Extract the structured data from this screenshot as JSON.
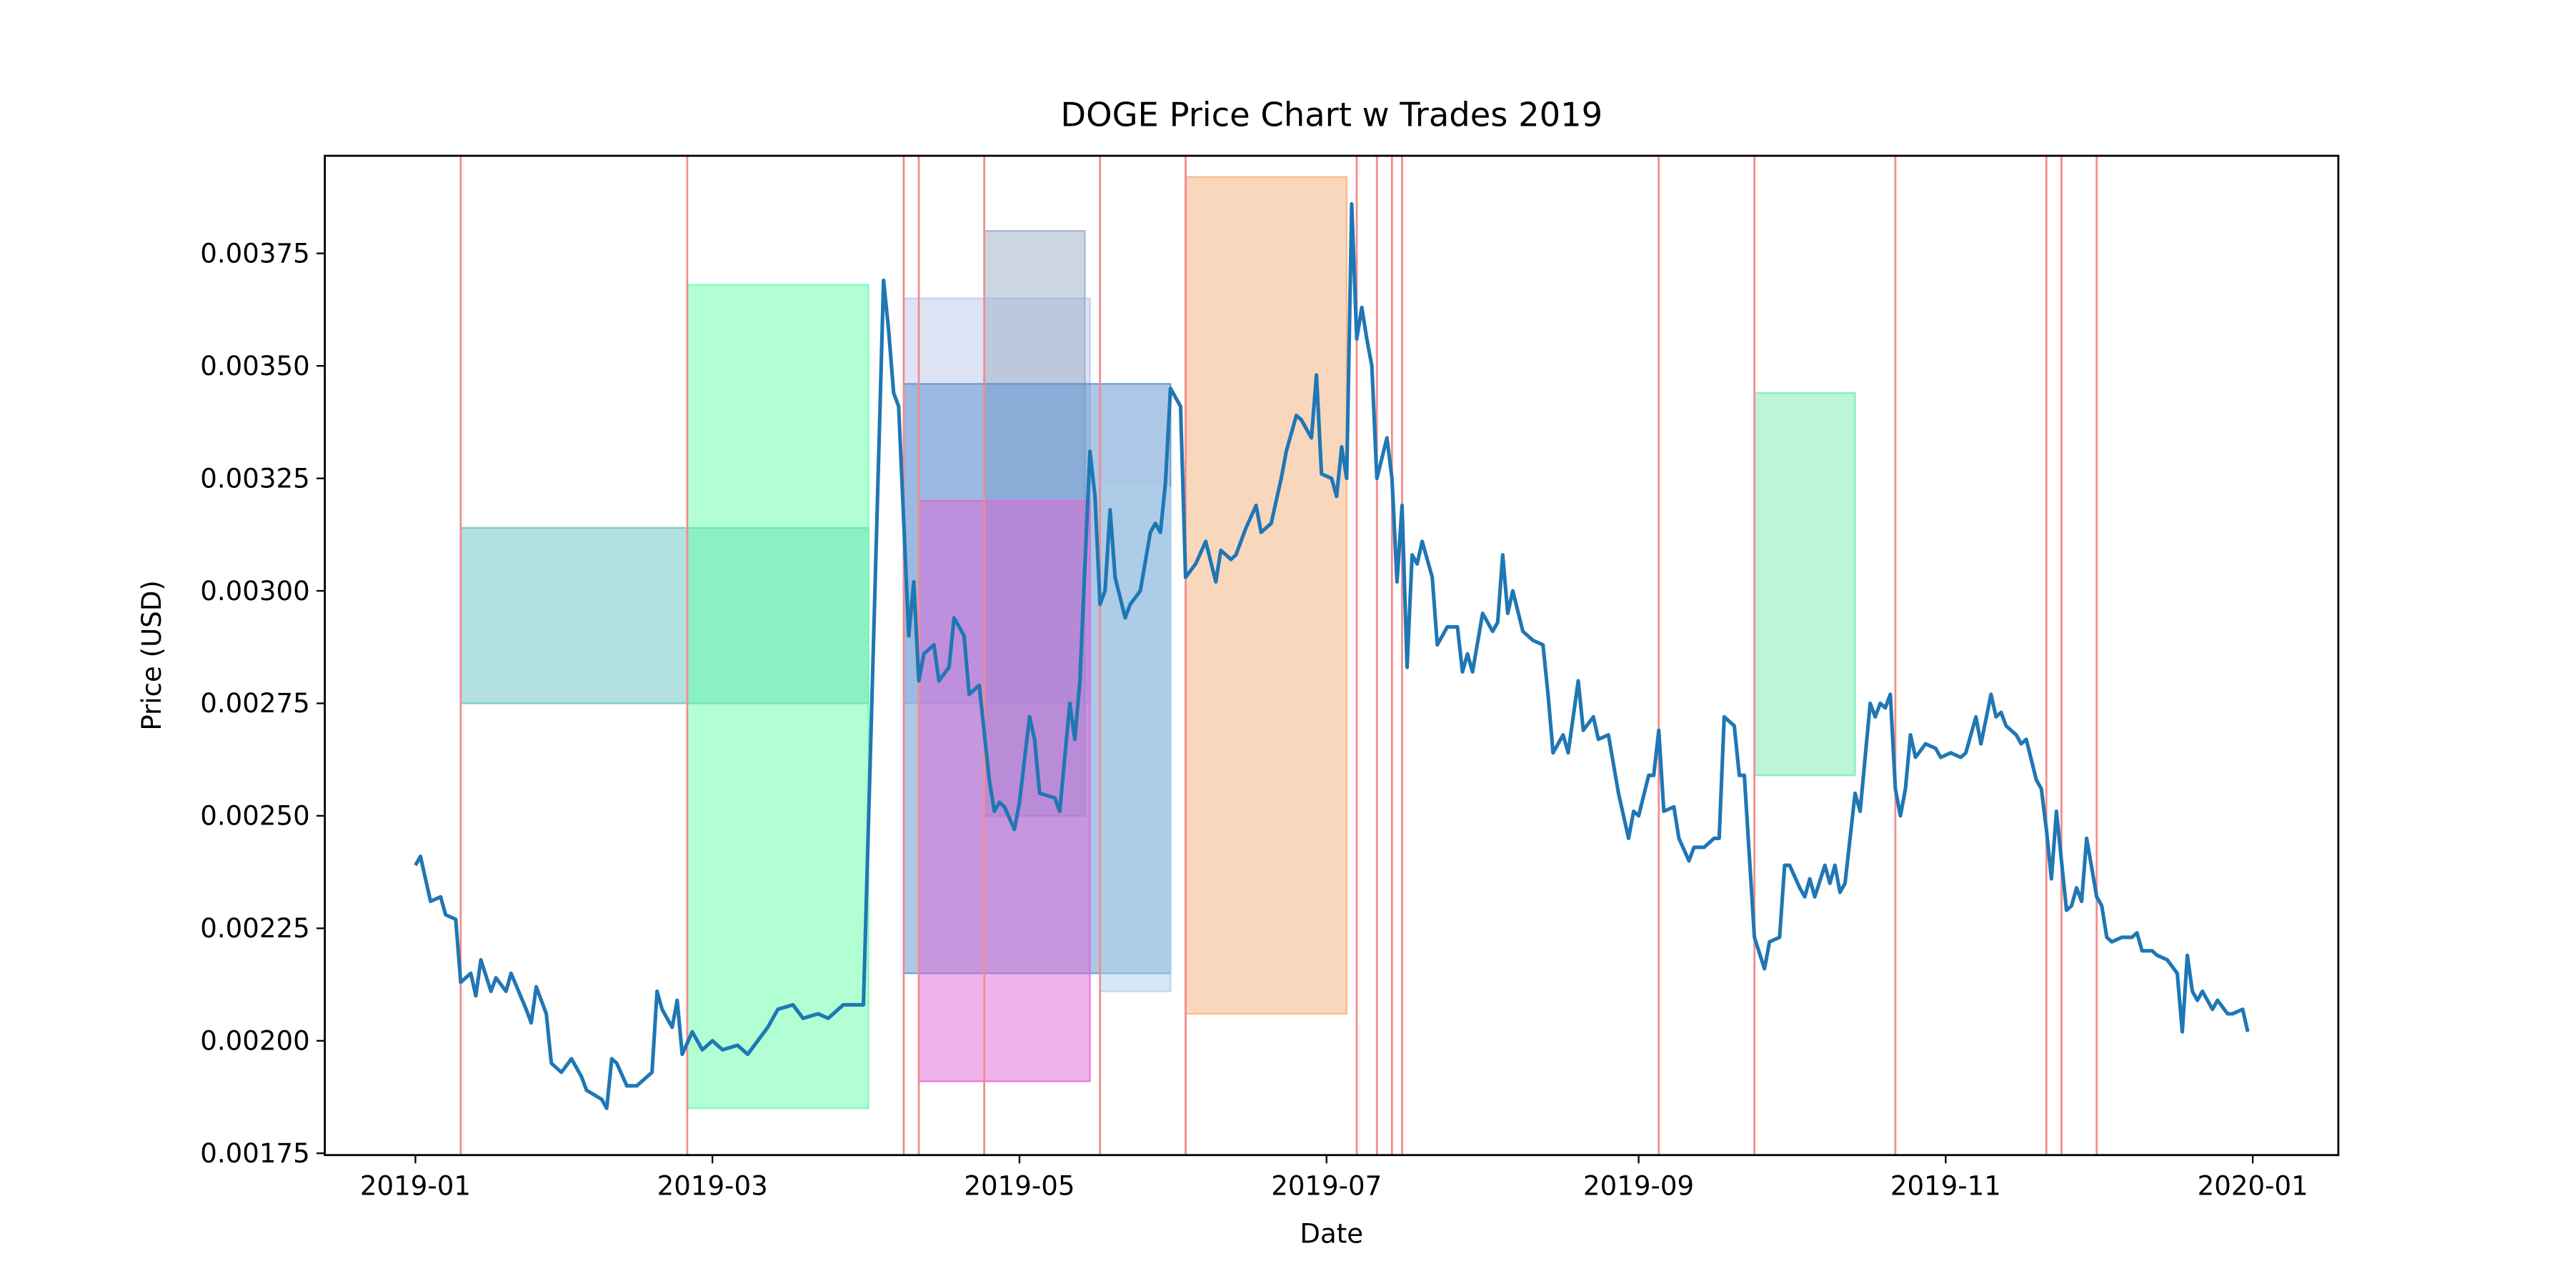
{
  "chart_data": {
    "type": "line",
    "title": "DOGE Price Chart w Trades 2019",
    "xlabel": "Date",
    "ylabel": "Price (USD)",
    "xlim": [
      "2018-12-14",
      "2020-01-18"
    ],
    "xticks": [
      {
        "value": "2019-01-01",
        "label": "2019-01"
      },
      {
        "value": "2019-03-01",
        "label": "2019-03"
      },
      {
        "value": "2019-05-01",
        "label": "2019-05"
      },
      {
        "value": "2019-07-01",
        "label": "2019-07"
      },
      {
        "value": "2019-09-01",
        "label": "2019-09"
      },
      {
        "value": "2019-11-01",
        "label": "2019-11"
      },
      {
        "value": "2020-01-01",
        "label": "2020-01"
      }
    ],
    "ylim": [
      0.001746,
      0.003967
    ],
    "yticks": [
      0.00175,
      {
        "value": 0.002,
        "label": "0.00200"
      },
      0.00225,
      {
        "value": 0.0025,
        "label": "0.00250"
      },
      0.00275,
      {
        "value": 0.003,
        "label": "0.00300"
      },
      0.00325,
      {
        "value": 0.0035,
        "label": "0.00350"
      },
      0.00375
    ],
    "trade_lines": {
      "color": "#f48c8c",
      "x": [
        "2019-01-10",
        "2019-02-24",
        "2019-04-08",
        "2019-04-11",
        "2019-04-24",
        "2019-05-17",
        "2019-06-03",
        "2019-07-07",
        "2019-07-11",
        "2019-07-14",
        "2019-07-16",
        "2019-09-05",
        "2019-09-24",
        "2019-10-22",
        "2019-11-21",
        "2019-11-24",
        "2019-12-01"
      ]
    },
    "trades": [
      {
        "x": [
          "2019-01-10",
          "2019-04-01"
        ],
        "y": [
          0.00275,
          0.00314
        ],
        "color": "#66c2c2"
      },
      {
        "x": [
          "2019-02-24",
          "2019-04-01"
        ],
        "y": [
          0.00185,
          0.00368
        ],
        "color": "#66ffaa"
      },
      {
        "x": [
          "2019-04-08",
          "2019-05-15"
        ],
        "y": [
          0.00275,
          0.00365
        ],
        "color": "#bbc8ea"
      },
      {
        "x": [
          "2019-04-24",
          "2019-05-14"
        ],
        "y": [
          0.0025,
          0.0038
        ],
        "color": "#9aaec8"
      },
      {
        "x": [
          "2019-04-08",
          "2019-05-31"
        ],
        "y": [
          0.00215,
          0.00346
        ],
        "color": "#5b8fd0"
      },
      {
        "x": [
          "2019-04-11",
          "2019-05-15"
        ],
        "y": [
          0.00191,
          0.0032
        ],
        "color": "#e066d6"
      },
      {
        "x": [
          "2019-05-17",
          "2019-05-31"
        ],
        "y": [
          0.00211,
          0.00323
        ],
        "color": "#abd2e8"
      },
      {
        "x": [
          "2019-06-03",
          "2019-07-05"
        ],
        "y": [
          0.00206,
          0.00392
        ],
        "color": "#f4b07b"
      },
      {
        "x": [
          "2019-09-24",
          "2019-10-14"
        ],
        "y": [
          0.00259,
          0.00344
        ],
        "color": "#77ebb5"
      }
    ],
    "trade_opacity": 0.5,
    "x": [
      "2019-01-01",
      "2019-01-02",
      "2019-01-04",
      "2019-01-06",
      "2019-01-07",
      "2019-01-09",
      "2019-01-10",
      "2019-01-12",
      "2019-01-13",
      "2019-01-14",
      "2019-01-16",
      "2019-01-17",
      "2019-01-19",
      "2019-01-20",
      "2019-01-23",
      "2019-01-24",
      "2019-01-25",
      "2019-01-27",
      "2019-01-28",
      "2019-01-30",
      "2019-02-01",
      "2019-02-03",
      "2019-02-04",
      "2019-02-07",
      "2019-02-08",
      "2019-02-09",
      "2019-02-10",
      "2019-02-12",
      "2019-02-14",
      "2019-02-17",
      "2019-02-18",
      "2019-02-19",
      "2019-02-21",
      "2019-02-22",
      "2019-02-23",
      "2019-02-25",
      "2019-02-27",
      "2019-03-01",
      "2019-03-03",
      "2019-03-06",
      "2019-03-08",
      "2019-03-10",
      "2019-03-12",
      "2019-03-14",
      "2019-03-17",
      "2019-03-19",
      "2019-03-22",
      "2019-03-24",
      "2019-03-27",
      "2019-03-29",
      "2019-03-31",
      "2019-04-04",
      "2019-04-05",
      "2019-04-06",
      "2019-04-07",
      "2019-04-09",
      "2019-04-10",
      "2019-04-11",
      "2019-04-12",
      "2019-04-14",
      "2019-04-15",
      "2019-04-17",
      "2019-04-18",
      "2019-04-20",
      "2019-04-21",
      "2019-04-23",
      "2019-04-25",
      "2019-04-26",
      "2019-04-27",
      "2019-04-28",
      "2019-04-30",
      "2019-05-01",
      "2019-05-03",
      "2019-05-04",
      "2019-05-05",
      "2019-05-08",
      "2019-05-09",
      "2019-05-11",
      "2019-05-12",
      "2019-05-13",
      "2019-05-15",
      "2019-05-16",
      "2019-05-17",
      "2019-05-18",
      "2019-05-19",
      "2019-05-20",
      "2019-05-22",
      "2019-05-23",
      "2019-05-25",
      "2019-05-27",
      "2019-05-28",
      "2019-05-29",
      "2019-05-30",
      "2019-05-31",
      "2019-06-02",
      "2019-06-03",
      "2019-06-05",
      "2019-06-07",
      "2019-06-09",
      "2019-06-10",
      "2019-06-12",
      "2019-06-13",
      "2019-06-15",
      "2019-06-17",
      "2019-06-18",
      "2019-06-20",
      "2019-06-22",
      "2019-06-23",
      "2019-06-25",
      "2019-06-26",
      "2019-06-28",
      "2019-06-29",
      "2019-06-30",
      "2019-07-02",
      "2019-07-03",
      "2019-07-04",
      "2019-07-05",
      "2019-07-06",
      "2019-07-07",
      "2019-07-08",
      "2019-07-09",
      "2019-07-10",
      "2019-07-11",
      "2019-07-13",
      "2019-07-14",
      "2019-07-15",
      "2019-07-16",
      "2019-07-17",
      "2019-07-18",
      "2019-07-19",
      "2019-07-20",
      "2019-07-22",
      "2019-07-23",
      "2019-07-25",
      "2019-07-27",
      "2019-07-28",
      "2019-07-29",
      "2019-07-30",
      "2019-08-01",
      "2019-08-03",
      "2019-08-04",
      "2019-08-05",
      "2019-08-06",
      "2019-08-07",
      "2019-08-09",
      "2019-08-10",
      "2019-08-11",
      "2019-08-13",
      "2019-08-14",
      "2019-08-15",
      "2019-08-17",
      "2019-08-18",
      "2019-08-20",
      "2019-08-21",
      "2019-08-23",
      "2019-08-24",
      "2019-08-26",
      "2019-08-28",
      "2019-08-30",
      "2019-08-31",
      "2019-09-01",
      "2019-09-03",
      "2019-09-04",
      "2019-09-05",
      "2019-09-06",
      "2019-09-08",
      "2019-09-09",
      "2019-09-11",
      "2019-09-12",
      "2019-09-14",
      "2019-09-16",
      "2019-09-17",
      "2019-09-18",
      "2019-09-20",
      "2019-09-21",
      "2019-09-22",
      "2019-09-24",
      "2019-09-26",
      "2019-09-27",
      "2019-09-29",
      "2019-09-30",
      "2019-10-01",
      "2019-10-03",
      "2019-10-04",
      "2019-10-05",
      "2019-10-06",
      "2019-10-08",
      "2019-10-09",
      "2019-10-10",
      "2019-10-11",
      "2019-10-12",
      "2019-10-14",
      "2019-10-15",
      "2019-10-16",
      "2019-10-17",
      "2019-10-18",
      "2019-10-19",
      "2019-10-20",
      "2019-10-21",
      "2019-10-22",
      "2019-10-23",
      "2019-10-24",
      "2019-10-25",
      "2019-10-26",
      "2019-10-28",
      "2019-10-30",
      "2019-10-31",
      "2019-11-02",
      "2019-11-04",
      "2019-11-05",
      "2019-11-07",
      "2019-11-08",
      "2019-11-10",
      "2019-11-11",
      "2019-11-12",
      "2019-11-13",
      "2019-11-15",
      "2019-11-16",
      "2019-11-17",
      "2019-11-19",
      "2019-11-20",
      "2019-11-21",
      "2019-11-22",
      "2019-11-23",
      "2019-11-25",
      "2019-11-26",
      "2019-11-27",
      "2019-11-28",
      "2019-11-29",
      "2019-12-01",
      "2019-12-02",
      "2019-12-03",
      "2019-12-04",
      "2019-12-06",
      "2019-12-08",
      "2019-12-09",
      "2019-12-10",
      "2019-12-12",
      "2019-12-13",
      "2019-12-15",
      "2019-12-17",
      "2019-12-18",
      "2019-12-19",
      "2019-12-20",
      "2019-12-21",
      "2019-12-22",
      "2019-12-24",
      "2019-12-25",
      "2019-12-27",
      "2019-12-28",
      "2019-12-30",
      "2019-12-31"
    ],
    "series": [
      {
        "color": "#1f77b4",
        "values": [
          0.00239,
          0.00241,
          0.00231,
          0.00232,
          0.00228,
          0.00227,
          0.00213,
          0.00215,
          0.0021,
          0.00218,
          0.00211,
          0.00214,
          0.00211,
          0.00215,
          0.00207,
          0.00204,
          0.00212,
          0.00206,
          0.00195,
          0.00193,
          0.00196,
          0.00192,
          0.00189,
          0.00187,
          0.00185,
          0.00196,
          0.00195,
          0.0019,
          0.0019,
          0.00193,
          0.00211,
          0.00207,
          0.00203,
          0.00209,
          0.00197,
          0.00202,
          0.00198,
          0.002,
          0.00198,
          0.00199,
          0.00197,
          0.002,
          0.00203,
          0.00207,
          0.00208,
          0.00205,
          0.00206,
          0.00205,
          0.00208,
          0.00208,
          0.00208,
          0.00369,
          0.00358,
          0.00344,
          0.00341,
          0.0029,
          0.00302,
          0.0028,
          0.00286,
          0.00288,
          0.0028,
          0.00283,
          0.00294,
          0.0029,
          0.00277,
          0.00279,
          0.00258,
          0.00251,
          0.00253,
          0.00252,
          0.00247,
          0.00253,
          0.00272,
          0.00267,
          0.00255,
          0.00254,
          0.00251,
          0.00275,
          0.00267,
          0.0028,
          0.00331,
          0.00321,
          0.00297,
          0.003,
          0.00318,
          0.00303,
          0.00294,
          0.00297,
          0.003,
          0.00313,
          0.00315,
          0.00313,
          0.00324,
          0.00345,
          0.00341,
          0.00303,
          0.00306,
          0.00311,
          0.00302,
          0.00309,
          0.00307,
          0.00308,
          0.00314,
          0.00319,
          0.00313,
          0.00315,
          0.00325,
          0.00331,
          0.00339,
          0.00338,
          0.00334,
          0.00348,
          0.00326,
          0.00325,
          0.00321,
          0.00332,
          0.00325,
          0.00386,
          0.00356,
          0.00363,
          0.00356,
          0.0035,
          0.00325,
          0.00334,
          0.00325,
          0.00302,
          0.00319,
          0.00283,
          0.00308,
          0.00306,
          0.00311,
          0.00303,
          0.00288,
          0.00292,
          0.00292,
          0.00282,
          0.00286,
          0.00282,
          0.00295,
          0.00291,
          0.00293,
          0.00308,
          0.00295,
          0.003,
          0.00291,
          0.0029,
          0.00289,
          0.00288,
          0.00277,
          0.00264,
          0.00268,
          0.00264,
          0.0028,
          0.00269,
          0.00272,
          0.00267,
          0.00268,
          0.00255,
          0.00245,
          0.00251,
          0.0025,
          0.00259,
          0.00259,
          0.00269,
          0.00251,
          0.00252,
          0.00245,
          0.0024,
          0.00243,
          0.00243,
          0.00245,
          0.00245,
          0.00272,
          0.0027,
          0.00259,
          0.00259,
          0.00223,
          0.00216,
          0.00222,
          0.00223,
          0.00239,
          0.00239,
          0.00234,
          0.00232,
          0.00236,
          0.00232,
          0.00239,
          0.00235,
          0.00239,
          0.00233,
          0.00235,
          0.00255,
          0.00251,
          0.00263,
          0.00275,
          0.00272,
          0.00275,
          0.00274,
          0.00277,
          0.00256,
          0.0025,
          0.00256,
          0.00268,
          0.00263,
          0.00266,
          0.00265,
          0.00263,
          0.00264,
          0.00263,
          0.00264,
          0.00272,
          0.00266,
          0.00277,
          0.00272,
          0.00273,
          0.0027,
          0.00268,
          0.00266,
          0.00267,
          0.00258,
          0.00256,
          0.00247,
          0.00236,
          0.00251,
          0.00229,
          0.0023,
          0.00234,
          0.00231,
          0.00245,
          0.00232,
          0.0023,
          0.00223,
          0.00222,
          0.00223,
          0.00223,
          0.00224,
          0.0022,
          0.0022,
          0.00219,
          0.00218,
          0.00215,
          0.00202,
          0.00219,
          0.00211,
          0.00209,
          0.00211,
          0.00207,
          0.00209,
          0.00206,
          0.00206,
          0.00207,
          0.00202
        ]
      }
    ]
  }
}
